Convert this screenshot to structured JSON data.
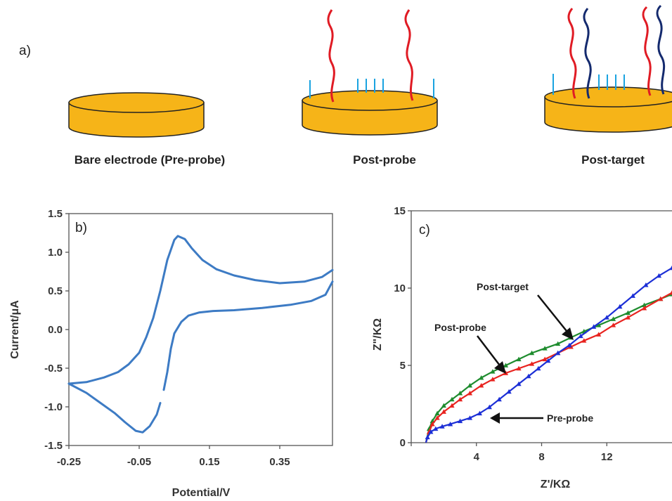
{
  "panel_a": {
    "label": "a)",
    "captions": [
      "Bare electrode (Pre-probe)",
      "Post-probe",
      "Post-target"
    ]
  },
  "chart_data": [
    {
      "type": "line",
      "panel_label": "b)",
      "xlabel": "Potential/V",
      "ylabel": "Current/μA",
      "xlim": [
        -0.25,
        0.5
      ],
      "ylim": [
        -1.5,
        1.5
      ],
      "xticks": [
        "-0.25",
        "-0.05",
        "0.15",
        "0.35"
      ],
      "yticks": [
        "1.5",
        "1.0",
        "0.5",
        "0.0",
        "-0.5",
        "-1.0",
        "-1.5"
      ],
      "grid": false,
      "color": "#3d7bc4",
      "series": [
        {
          "segment": "forward",
          "x": [
            -0.25,
            -0.2,
            -0.15,
            -0.11,
            -0.08,
            -0.05,
            -0.03,
            -0.01,
            0.01,
            0.03,
            0.05,
            0.06,
            0.08,
            0.1,
            0.13,
            0.17,
            0.22,
            0.28,
            0.35,
            0.42,
            0.47,
            0.5
          ],
          "y": [
            -0.7,
            -0.68,
            -0.62,
            -0.55,
            -0.45,
            -0.3,
            -0.1,
            0.15,
            0.5,
            0.9,
            1.16,
            1.21,
            1.17,
            1.05,
            0.9,
            0.78,
            0.7,
            0.64,
            0.6,
            0.62,
            0.68,
            0.77
          ]
        },
        {
          "segment": "reverse",
          "x": [
            0.5,
            0.48,
            0.44,
            0.38,
            0.3,
            0.22,
            0.16,
            0.12,
            0.09,
            0.07,
            0.05,
            0.04,
            0.03,
            0.02
          ],
          "y": [
            0.62,
            0.45,
            0.37,
            0.32,
            0.28,
            0.25,
            0.24,
            0.22,
            0.18,
            0.1,
            -0.05,
            -0.25,
            -0.55,
            -0.78
          ]
        },
        {
          "segment": "reverse",
          "x": [
            0.01,
            0.0,
            -0.02,
            -0.04,
            -0.06,
            -0.09,
            -0.12,
            -0.16,
            -0.2,
            -0.25
          ],
          "y": [
            -0.95,
            -1.1,
            -1.25,
            -1.33,
            -1.31,
            -1.2,
            -1.08,
            -0.95,
            -0.82,
            -0.7
          ]
        }
      ]
    },
    {
      "type": "line",
      "panel_label": "c)",
      "xlabel": "Z'/KΩ",
      "ylabel": "Z\"/KΩ",
      "xlim": [
        0,
        16
      ],
      "ylim": [
        0,
        15
      ],
      "xticks": [
        "0",
        "4",
        "8",
        "12"
      ],
      "yticks": [
        "15",
        "10",
        "5",
        "0"
      ],
      "grid": false,
      "series": [
        {
          "name": "Post-target",
          "color": "#1e8c2e",
          "x": [
            0.9,
            1.1,
            1.3,
            1.6,
            2.0,
            2.5,
            3.0,
            3.6,
            4.3,
            5.0,
            5.8,
            6.6,
            7.4,
            8.2,
            9.0,
            9.8,
            10.6,
            11.5,
            12.4,
            13.3,
            14.3,
            15.3,
            16.0
          ],
          "y": [
            0.0,
            0.9,
            1.4,
            1.9,
            2.4,
            2.8,
            3.2,
            3.7,
            4.2,
            4.6,
            5.0,
            5.4,
            5.8,
            6.1,
            6.4,
            6.8,
            7.2,
            7.6,
            8.0,
            8.4,
            8.9,
            9.3,
            9.6
          ]
        },
        {
          "name": "Post-probe",
          "color": "#e8231f",
          "x": [
            0.9,
            1.1,
            1.3,
            1.6,
            2.0,
            2.5,
            3.0,
            3.6,
            4.3,
            5.0,
            5.8,
            6.6,
            7.4,
            8.2,
            9.0,
            9.8,
            10.6,
            11.5,
            12.4,
            13.3,
            14.3,
            15.3,
            16.0
          ],
          "y": [
            0.0,
            0.7,
            1.2,
            1.6,
            2.0,
            2.4,
            2.8,
            3.2,
            3.7,
            4.1,
            4.5,
            4.8,
            5.1,
            5.4,
            5.8,
            6.2,
            6.6,
            7.0,
            7.6,
            8.1,
            8.7,
            9.3,
            9.7
          ]
        },
        {
          "name": "Pre-probe",
          "color": "#1c2fd6",
          "x": [
            0.9,
            1.0,
            1.2,
            1.5,
            1.9,
            2.4,
            3.0,
            3.6,
            4.2,
            4.8,
            5.4,
            6.0,
            6.6,
            7.2,
            7.8,
            8.4,
            9.0,
            9.7,
            10.4,
            11.2,
            12.0,
            12.8,
            13.6,
            14.4,
            15.2,
            16.0
          ],
          "y": [
            0.0,
            0.35,
            0.7,
            0.9,
            1.05,
            1.2,
            1.4,
            1.6,
            1.9,
            2.3,
            2.8,
            3.3,
            3.8,
            4.3,
            4.8,
            5.3,
            5.8,
            6.3,
            6.9,
            7.5,
            8.1,
            8.8,
            9.5,
            10.2,
            10.8,
            11.3
          ]
        }
      ]
    }
  ]
}
